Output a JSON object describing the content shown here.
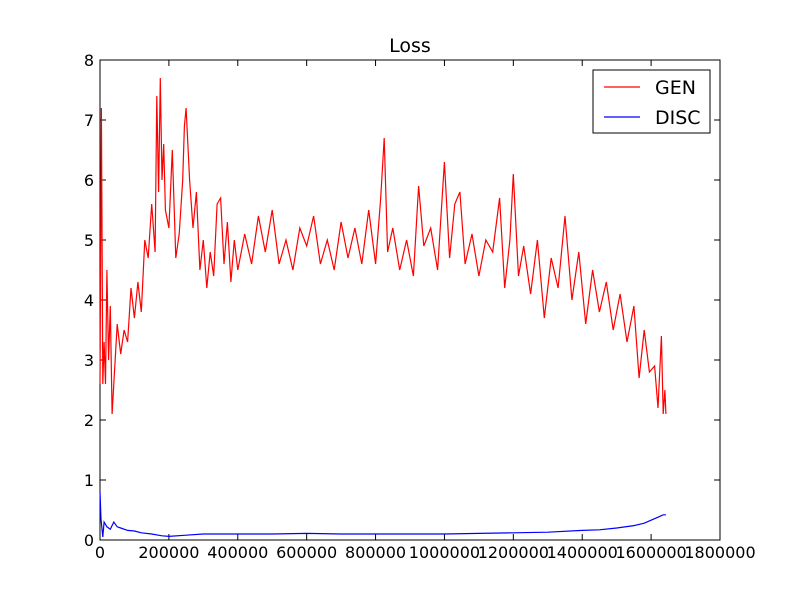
{
  "chart_data": {
    "type": "line",
    "title": "Loss",
    "xlabel": "",
    "ylabel": "",
    "xlim": [
      0,
      1800000
    ],
    "ylim": [
      0,
      8
    ],
    "xticks": [
      0,
      200000,
      400000,
      600000,
      800000,
      1000000,
      1200000,
      1400000,
      1600000,
      1800000
    ],
    "yticks": [
      0,
      1,
      2,
      3,
      4,
      5,
      6,
      7,
      8
    ],
    "grid": false,
    "legend_position": "top-right",
    "series": [
      {
        "name": "GEN",
        "color": "#ff0000",
        "points": [
          [
            0,
            2.6
          ],
          [
            4000,
            7.2
          ],
          [
            8000,
            2.6
          ],
          [
            12000,
            3.3
          ],
          [
            16000,
            2.6
          ],
          [
            20000,
            4.5
          ],
          [
            25000,
            3.0
          ],
          [
            30000,
            3.9
          ],
          [
            35000,
            2.1
          ],
          [
            40000,
            2.6
          ],
          [
            50000,
            3.6
          ],
          [
            60000,
            3.1
          ],
          [
            70000,
            3.5
          ],
          [
            80000,
            3.3
          ],
          [
            90000,
            4.2
          ],
          [
            100000,
            3.7
          ],
          [
            110000,
            4.3
          ],
          [
            120000,
            3.8
          ],
          [
            130000,
            5.0
          ],
          [
            140000,
            4.7
          ],
          [
            150000,
            5.6
          ],
          [
            160000,
            4.8
          ],
          [
            165000,
            7.4
          ],
          [
            170000,
            5.8
          ],
          [
            175000,
            7.7
          ],
          [
            180000,
            6.0
          ],
          [
            185000,
            6.6
          ],
          [
            190000,
            5.5
          ],
          [
            200000,
            5.2
          ],
          [
            210000,
            6.5
          ],
          [
            220000,
            4.7
          ],
          [
            230000,
            5.1
          ],
          [
            240000,
            6.0
          ],
          [
            245000,
            6.9
          ],
          [
            250000,
            7.2
          ],
          [
            260000,
            6.0
          ],
          [
            270000,
            5.2
          ],
          [
            280000,
            5.8
          ],
          [
            290000,
            4.5
          ],
          [
            300000,
            5.0
          ],
          [
            310000,
            4.2
          ],
          [
            320000,
            4.8
          ],
          [
            330000,
            4.4
          ],
          [
            340000,
            5.6
          ],
          [
            350000,
            5.7
          ],
          [
            360000,
            4.6
          ],
          [
            370000,
            5.3
          ],
          [
            380000,
            4.3
          ],
          [
            390000,
            5.0
          ],
          [
            400000,
            4.5
          ],
          [
            420000,
            5.1
          ],
          [
            440000,
            4.6
          ],
          [
            460000,
            5.4
          ],
          [
            480000,
            4.8
          ],
          [
            500000,
            5.5
          ],
          [
            520000,
            4.6
          ],
          [
            540000,
            5.0
          ],
          [
            560000,
            4.5
          ],
          [
            580000,
            5.2
          ],
          [
            600000,
            4.9
          ],
          [
            620000,
            5.4
          ],
          [
            640000,
            4.6
          ],
          [
            660000,
            5.0
          ],
          [
            680000,
            4.5
          ],
          [
            700000,
            5.3
          ],
          [
            720000,
            4.7
          ],
          [
            740000,
            5.2
          ],
          [
            760000,
            4.6
          ],
          [
            780000,
            5.5
          ],
          [
            800000,
            4.6
          ],
          [
            815000,
            5.7
          ],
          [
            825000,
            6.7
          ],
          [
            835000,
            4.8
          ],
          [
            850000,
            5.2
          ],
          [
            870000,
            4.5
          ],
          [
            890000,
            5.0
          ],
          [
            910000,
            4.4
          ],
          [
            925000,
            5.9
          ],
          [
            940000,
            4.9
          ],
          [
            960000,
            5.2
          ],
          [
            980000,
            4.5
          ],
          [
            1000000,
            6.3
          ],
          [
            1015000,
            4.7
          ],
          [
            1030000,
            5.6
          ],
          [
            1045000,
            5.8
          ],
          [
            1060000,
            4.6
          ],
          [
            1080000,
            5.1
          ],
          [
            1100000,
            4.4
          ],
          [
            1120000,
            5.0
          ],
          [
            1140000,
            4.8
          ],
          [
            1160000,
            5.7
          ],
          [
            1175000,
            4.2
          ],
          [
            1190000,
            5.0
          ],
          [
            1200000,
            6.1
          ],
          [
            1215000,
            4.4
          ],
          [
            1230000,
            4.9
          ],
          [
            1250000,
            4.1
          ],
          [
            1270000,
            5.0
          ],
          [
            1290000,
            3.7
          ],
          [
            1310000,
            4.7
          ],
          [
            1330000,
            4.2
          ],
          [
            1350000,
            5.4
          ],
          [
            1370000,
            4.0
          ],
          [
            1390000,
            4.8
          ],
          [
            1410000,
            3.6
          ],
          [
            1430000,
            4.5
          ],
          [
            1450000,
            3.8
          ],
          [
            1470000,
            4.3
          ],
          [
            1490000,
            3.5
          ],
          [
            1510000,
            4.1
          ],
          [
            1530000,
            3.3
          ],
          [
            1550000,
            3.9
          ],
          [
            1565000,
            2.7
          ],
          [
            1580000,
            3.5
          ],
          [
            1595000,
            2.8
          ],
          [
            1610000,
            2.9
          ],
          [
            1620000,
            2.2
          ],
          [
            1630000,
            3.4
          ],
          [
            1635000,
            2.1
          ],
          [
            1640000,
            2.5
          ],
          [
            1643000,
            2.1
          ]
        ]
      },
      {
        "name": "DISC",
        "color": "#0000ff",
        "points": [
          [
            0,
            0.8
          ],
          [
            3000,
            0.35
          ],
          [
            8000,
            0.05
          ],
          [
            12000,
            0.3
          ],
          [
            20000,
            0.22
          ],
          [
            30000,
            0.18
          ],
          [
            40000,
            0.3
          ],
          [
            50000,
            0.22
          ],
          [
            60000,
            0.2
          ],
          [
            80000,
            0.16
          ],
          [
            100000,
            0.15
          ],
          [
            120000,
            0.12
          ],
          [
            150000,
            0.1
          ],
          [
            180000,
            0.07
          ],
          [
            200000,
            0.06
          ],
          [
            250000,
            0.08
          ],
          [
            300000,
            0.1
          ],
          [
            400000,
            0.1
          ],
          [
            500000,
            0.1
          ],
          [
            600000,
            0.11
          ],
          [
            700000,
            0.1
          ],
          [
            800000,
            0.1
          ],
          [
            900000,
            0.1
          ],
          [
            1000000,
            0.1
          ],
          [
            1100000,
            0.11
          ],
          [
            1200000,
            0.12
          ],
          [
            1300000,
            0.13
          ],
          [
            1400000,
            0.16
          ],
          [
            1450000,
            0.17
          ],
          [
            1500000,
            0.2
          ],
          [
            1550000,
            0.24
          ],
          [
            1580000,
            0.28
          ],
          [
            1600000,
            0.33
          ],
          [
            1620000,
            0.38
          ],
          [
            1635000,
            0.42
          ],
          [
            1643000,
            0.42
          ]
        ]
      }
    ]
  }
}
